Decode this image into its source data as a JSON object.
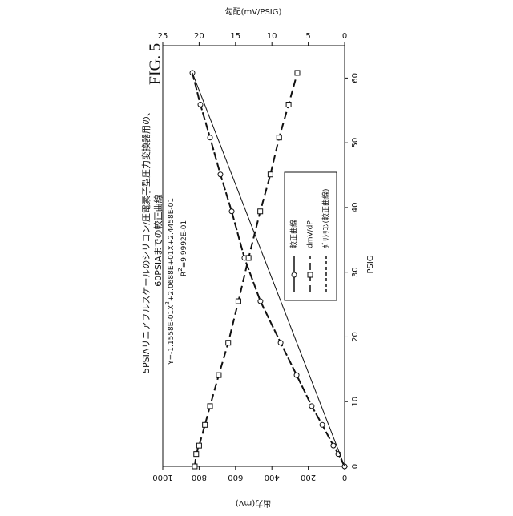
{
  "chart_data": {
    "type": "line",
    "title": [
      "5PSIAリニアフルスケールのシリコン/圧電素子型圧力変換器用の、",
      "60PSIAまでの較正曲線"
    ],
    "figure_label": "FIG. 5",
    "x_label": "PSIG",
    "y_label": "出力(mV)",
    "y2_label": "勾配(mV/PSIG)",
    "equation": [
      "Y=-1.1558E-01X",
      "2",
      "+2.0688E+01X+2.4458E-01"
    ],
    "r_squared": [
      "R",
      "2",
      "=9.9992E-01"
    ],
    "xlim": [
      0,
      65
    ],
    "xticks": [
      0,
      10,
      20,
      30,
      40,
      50,
      60
    ],
    "ylim": [
      0,
      1000
    ],
    "yticks": [
      0,
      200,
      400,
      600,
      800,
      1000
    ],
    "y2lim": [
      0,
      25
    ],
    "y2ticks": [
      0,
      5,
      10,
      15,
      20,
      25
    ],
    "series": [
      {
        "name": "較正曲線",
        "color": "#111111",
        "marker": "circle",
        "dash": "solid",
        "x": [
          0,
          1.9,
          3.2,
          6.4,
          9.3,
          14.1,
          19.1,
          25.5,
          32.2,
          39.4,
          45.1,
          50.8,
          55.9,
          60.8
        ],
        "values": [
          0,
          35,
          62,
          123,
          181,
          264,
          352,
          463,
          551,
          621,
          683,
          740,
          793,
          837
        ]
      },
      {
        "name": "dmV/dP",
        "color": "#111111",
        "marker": "square",
        "dash": "long",
        "axis": "y2",
        "x": [
          0,
          1.9,
          3.2,
          6.4,
          9.3,
          14.1,
          19.1,
          25.5,
          32.2,
          39.4,
          45.1,
          50.8,
          55.9,
          60.8
        ],
        "values": [
          20.6,
          20.4,
          20.0,
          19.2,
          18.5,
          17.3,
          16.0,
          14.6,
          13.2,
          11.6,
          10.2,
          9.0,
          7.7,
          6.5
        ]
      },
      {
        "name": "ﾎﾞﾘｼﾘｺﾝ(較正曲線)",
        "color": "#111111",
        "marker": "none",
        "dash": "short",
        "x": [
          0,
          60.8
        ],
        "values": [
          0,
          837
        ]
      }
    ]
  }
}
